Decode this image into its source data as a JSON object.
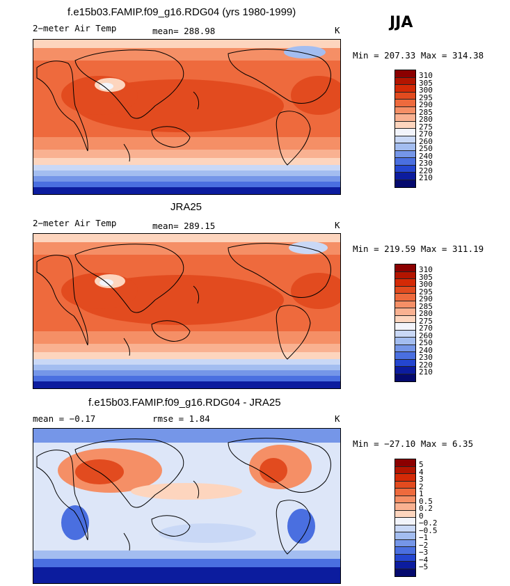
{
  "season": "JJA",
  "units": "K",
  "panels": [
    {
      "title": "f.e15b03.FAMIP.f09_g16.RDG04 (yrs 1980-1999)",
      "left_label": "2−meter Air Temp",
      "stat_label": "mean= 288.98",
      "units": "K",
      "minmax": "Min = 207.33 Max = 314.38"
    },
    {
      "title": "JRA25",
      "left_label": "2−meter Air Temp",
      "stat_label": "mean= 289.15",
      "units": "K",
      "minmax": "Min = 219.59 Max = 311.19"
    },
    {
      "title": "f.e15b03.FAMIP.f09_g16.RDG04 - JRA25",
      "left_label": "mean =   −0.17",
      "stat_label": "rmse =    1.84",
      "units": "K",
      "minmax": "Min = −27.10 Max =    6.35"
    }
  ],
  "colorbars": {
    "absolute": {
      "labels": [
        "310",
        "305",
        "300",
        "295",
        "290",
        "285",
        "280",
        "275",
        "270",
        "260",
        "250",
        "240",
        "230",
        "220",
        "210"
      ],
      "colors": [
        "#8b0000",
        "#b31500",
        "#d42a06",
        "#e24b1f",
        "#ee6a3d",
        "#f58f66",
        "#f9b191",
        "#fdd5be",
        "#f2f4fb",
        "#c9d8f6",
        "#a3bdf0",
        "#7596e8",
        "#4a6fe0",
        "#2446d0",
        "#0c1c9e",
        "#050a6e"
      ]
    },
    "difference": {
      "labels": [
        "5",
        "4",
        "3",
        "2",
        "1",
        "0.5",
        "0.2",
        "0",
        "−0.2",
        "−0.5",
        "−1",
        "−2",
        "−3",
        "−4",
        "−5"
      ],
      "colors": [
        "#8b0000",
        "#b31500",
        "#d42a06",
        "#e24b1f",
        "#ee6a3d",
        "#f58f66",
        "#f9b191",
        "#fdd5be",
        "#f2f4fb",
        "#c9d8f6",
        "#a3bdf0",
        "#7596e8",
        "#4a6fe0",
        "#2446d0",
        "#0c1c9e",
        "#050a6e"
      ]
    }
  }
}
